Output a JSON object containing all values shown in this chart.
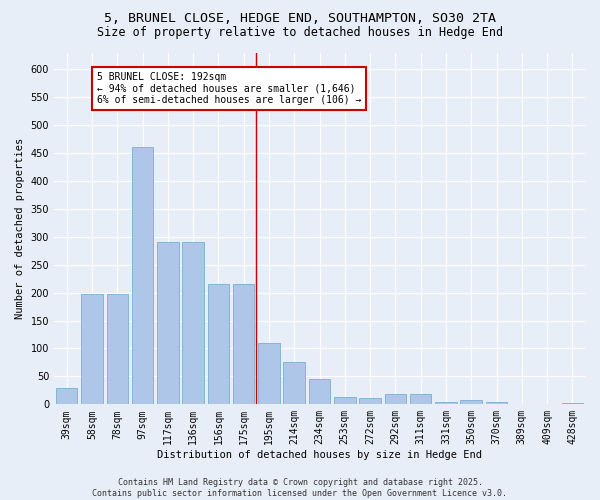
{
  "title_line1": "5, BRUNEL CLOSE, HEDGE END, SOUTHAMPTON, SO30 2TA",
  "title_line2": "Size of property relative to detached houses in Hedge End",
  "xlabel": "Distribution of detached houses by size in Hedge End",
  "ylabel": "Number of detached properties",
  "categories": [
    "39sqm",
    "58sqm",
    "78sqm",
    "97sqm",
    "117sqm",
    "136sqm",
    "156sqm",
    "175sqm",
    "195sqm",
    "214sqm",
    "234sqm",
    "253sqm",
    "272sqm",
    "292sqm",
    "311sqm",
    "331sqm",
    "350sqm",
    "370sqm",
    "389sqm",
    "409sqm",
    "428sqm"
  ],
  "values": [
    30,
    198,
    198,
    460,
    291,
    291,
    215,
    215,
    110,
    75,
    46,
    13,
    12,
    18,
    18,
    5,
    7,
    5,
    0,
    0,
    2
  ],
  "bar_color": "#aec6e8",
  "bar_edge_color": "#7aafd4",
  "bg_color": "#e8eef8",
  "grid_color": "#ffffff",
  "vline_color": "#cc0000",
  "annotation_title": "5 BRUNEL CLOSE: 192sqm",
  "annotation_line1": "← 94% of detached houses are smaller (1,646)",
  "annotation_line2": "6% of semi-detached houses are larger (106) →",
  "annotation_box_color": "#cc0000",
  "annotation_bg": "#ffffff",
  "ylim": [
    0,
    630
  ],
  "yticks": [
    0,
    50,
    100,
    150,
    200,
    250,
    300,
    350,
    400,
    450,
    500,
    550,
    600
  ],
  "footnote": "Contains HM Land Registry data © Crown copyright and database right 2025.\nContains public sector information licensed under the Open Government Licence v3.0.",
  "title_fontsize": 9.5,
  "subtitle_fontsize": 8.5,
  "axis_label_fontsize": 7.5,
  "tick_fontsize": 7,
  "annotation_fontsize": 7,
  "footnote_fontsize": 6
}
